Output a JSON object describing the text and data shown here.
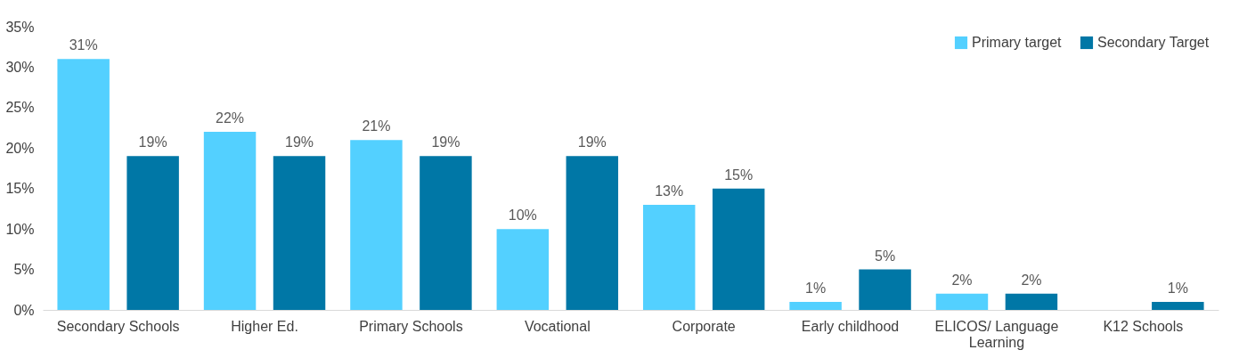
{
  "chart_data": {
    "type": "bar",
    "categories": [
      "Secondary Schools",
      "Higher Ed.",
      "Primary Schools",
      "Vocational",
      "Corporate",
      "Early childhood",
      "ELICOS/ Language Learning",
      "K12 Schools"
    ],
    "series": [
      {
        "name": "Primary target",
        "color": "#53d0ff",
        "values": [
          31,
          22,
          21,
          10,
          13,
          1,
          2,
          null
        ],
        "value_labels": [
          "31%",
          "22%",
          "21%",
          "10%",
          "13%",
          "1%",
          "2%",
          null
        ]
      },
      {
        "name": "Secondary Target",
        "color": "#0077a6",
        "values": [
          19,
          19,
          19,
          19,
          15,
          5,
          2,
          1
        ],
        "value_labels": [
          "19%",
          "19%",
          "19%",
          "19%",
          "15%",
          "5%",
          "2%",
          "1%"
        ]
      }
    ],
    "ylim": [
      0,
      35
    ],
    "yticks": [
      {
        "value": 0,
        "label": "0%"
      },
      {
        "value": 5,
        "label": "5%"
      },
      {
        "value": 10,
        "label": "10%"
      },
      {
        "value": 15,
        "label": "15%"
      },
      {
        "value": 20,
        "label": "20%"
      },
      {
        "value": 25,
        "label": "25%"
      },
      {
        "value": 30,
        "label": "30%"
      },
      {
        "value": 35,
        "label": "35%"
      }
    ],
    "grid": false,
    "legend": "top right"
  }
}
